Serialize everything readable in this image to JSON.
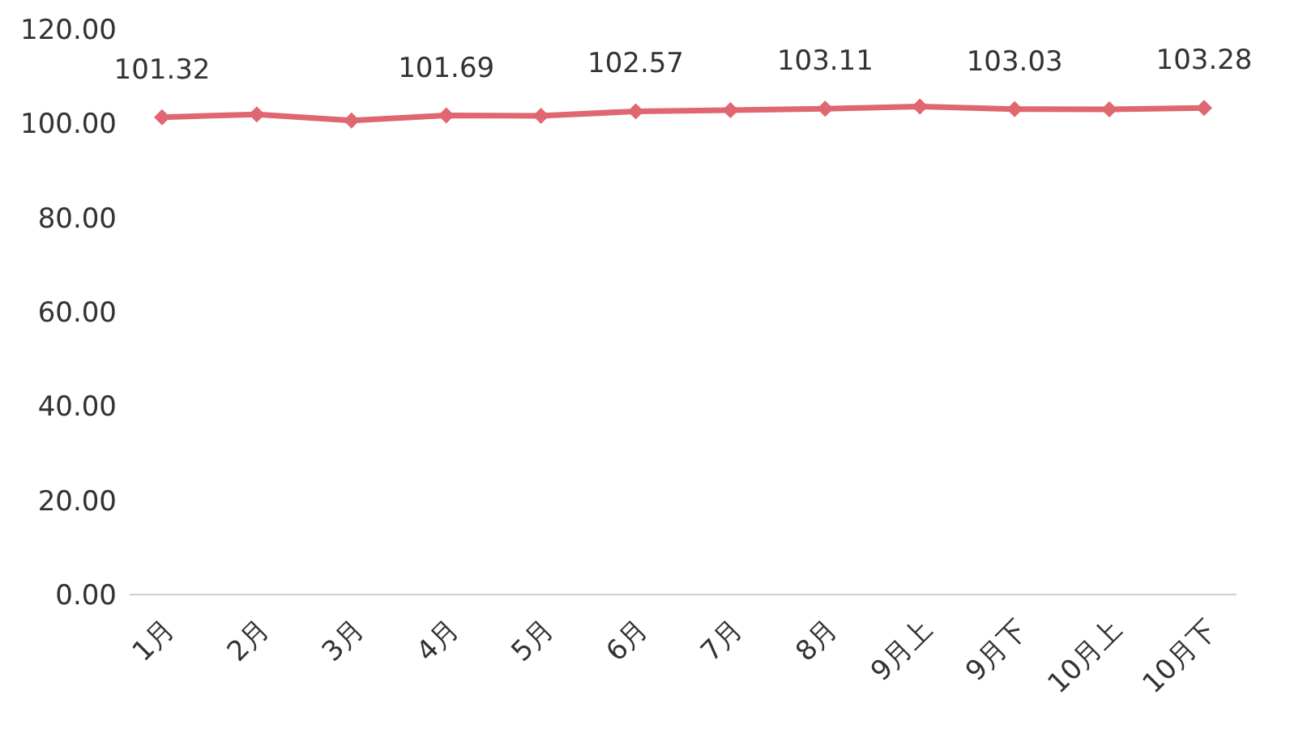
{
  "chart_data": {
    "type": "line",
    "categories": [
      "1月",
      "2月",
      "3月",
      "4月",
      "5月",
      "6月",
      "7月",
      "8月",
      "9月上",
      "9月下",
      "10月上",
      "10月下"
    ],
    "series": [
      {
        "color": "#e06670",
        "values": [
          101.32,
          101.9,
          100.6,
          101.69,
          101.6,
          102.57,
          102.8,
          103.11,
          103.6,
          103.03,
          103.0,
          103.28
        ],
        "value_labels": [
          "101.32",
          null,
          null,
          "101.69",
          null,
          "102.57",
          null,
          "103.11",
          null,
          "103.03",
          null,
          "103.28"
        ]
      }
    ],
    "ylim": [
      0,
      120
    ],
    "yticks": [
      {
        "value": 0,
        "label": "0.00"
      },
      {
        "value": 20,
        "label": "20.00"
      },
      {
        "value": 40,
        "label": "40.00"
      },
      {
        "value": 60,
        "label": "60.00"
      },
      {
        "value": 80,
        "label": "80.00"
      },
      {
        "value": 100,
        "label": "100.00"
      },
      {
        "value": 120,
        "label": "120.00"
      }
    ],
    "grid": false,
    "legend": false,
    "marker": "diamond",
    "line_style": "solid"
  }
}
